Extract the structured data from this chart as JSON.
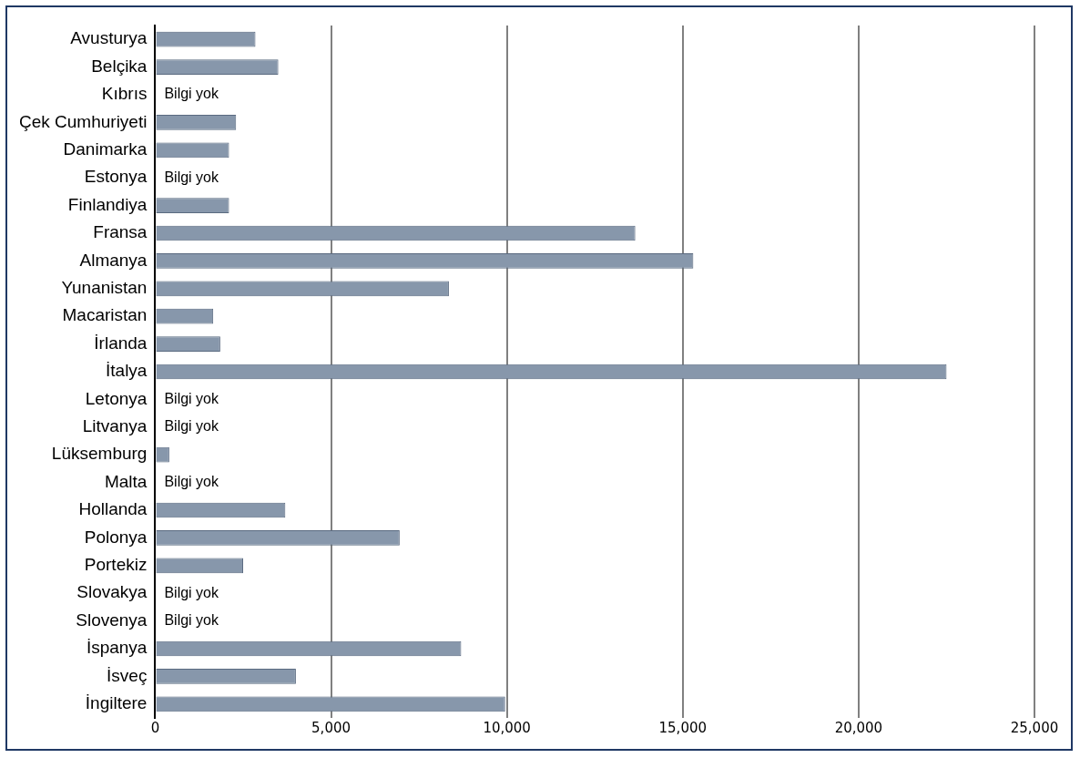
{
  "chart_data": {
    "type": "bar",
    "orientation": "horizontal",
    "categories": [
      "Avusturya",
      "Belçika",
      "Kıbrıs",
      "Çek Cumhuriyeti",
      "Danimarka",
      "Estonya",
      "Finlandiya",
      "Fransa",
      "Almanya",
      "Yunanistan",
      "Macaristan",
      "İrlanda",
      "İtalya",
      "Letonya",
      "Litvanya",
      "Lüksemburg",
      "Malta",
      "Hollanda",
      "Polonya",
      "Portekiz",
      "Slovakya",
      "Slovenya",
      "İspanya",
      "İsveç",
      "İngiltere"
    ],
    "values": [
      2850,
      3500,
      null,
      2300,
      2100,
      null,
      2100,
      13650,
      15300,
      8350,
      1650,
      1850,
      22500,
      null,
      null,
      400,
      null,
      3700,
      6950,
      2500,
      null,
      null,
      8700,
      4000,
      9950
    ],
    "value_labels": [
      null,
      null,
      "Bilgi yok",
      null,
      null,
      "Bilgi yok",
      null,
      null,
      null,
      null,
      null,
      null,
      null,
      "Bilgi yok",
      "Bilgi yok",
      null,
      "Bilgi yok",
      null,
      null,
      null,
      "Bilgi yok",
      "Bilgi yok",
      null,
      null,
      null
    ],
    "color": "#8797ab",
    "xlim": [
      0,
      25000
    ],
    "xticks": [
      0,
      {
        "value": 5000,
        "label": "5,000"
      },
      {
        "value": 10000,
        "label": "10,000"
      },
      {
        "value": 15000,
        "label": "15,000"
      },
      {
        "value": 20000,
        "label": "20,000"
      },
      {
        "value": 25000,
        "label": "25,000"
      }
    ],
    "grid": "x",
    "legend": false
  }
}
